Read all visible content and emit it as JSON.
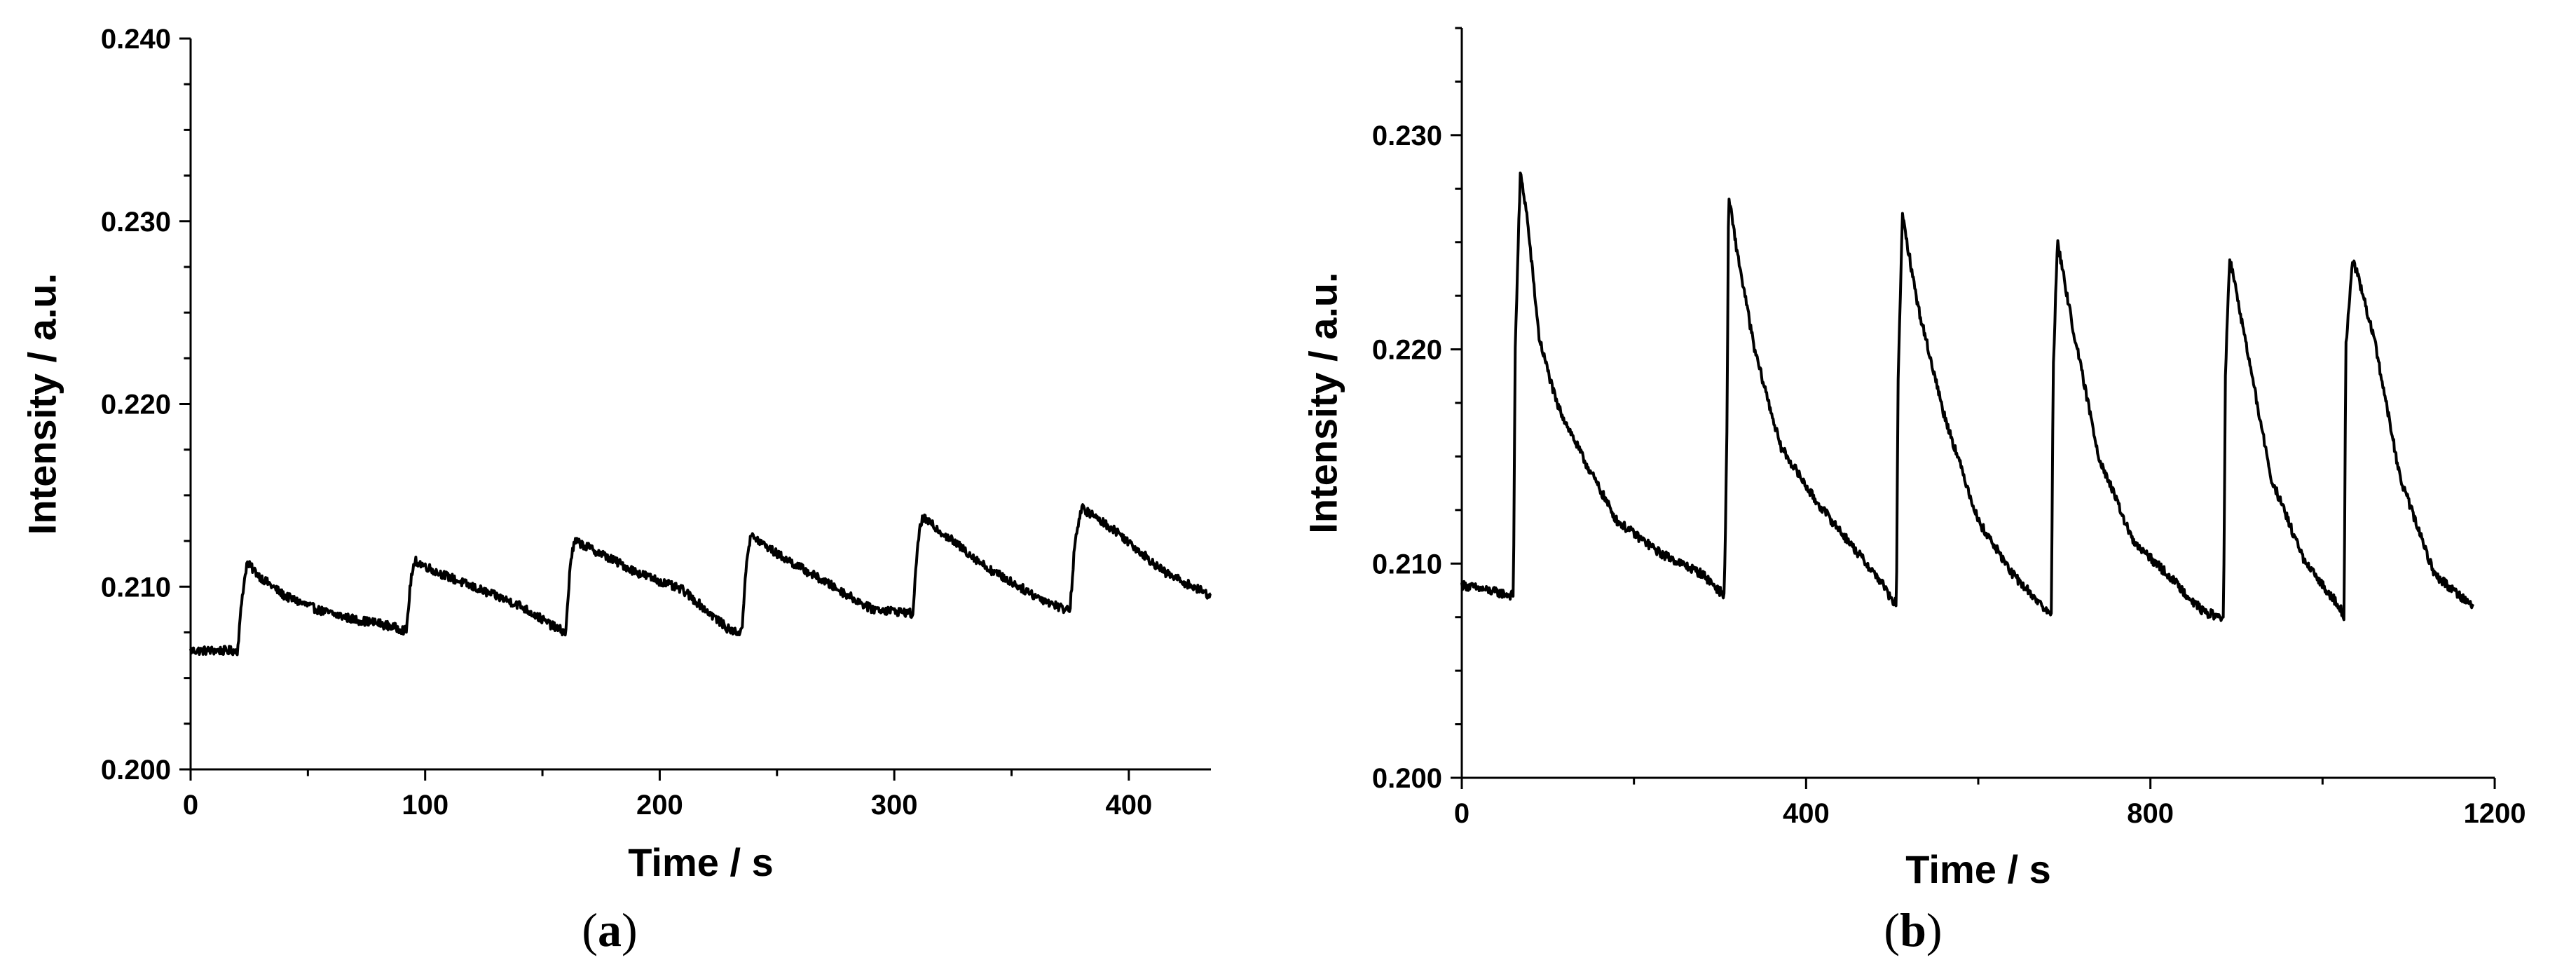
{
  "chart_data": [
    {
      "panel": "a",
      "type": "line",
      "xlabel": "Time / s",
      "ylabel": "Intensity / a.u.",
      "xlim": [
        0,
        435
      ],
      "ylim": [
        0.2,
        0.24
      ],
      "x_ticks": [
        0,
        100,
        200,
        300,
        400
      ],
      "x_tick_labels": [
        "0",
        "100",
        "200",
        "300",
        "400"
      ],
      "y_ticks": [
        0.2,
        0.21,
        0.22,
        0.23,
        0.24
      ],
      "y_tick_labels": [
        "0.200",
        "0.210",
        "0.220",
        "0.230",
        "0.240"
      ],
      "grid": false,
      "series": [
        {
          "x": [
            0,
            20,
            22,
            24,
            30,
            40,
            55,
            70,
            80,
            92,
            94,
            96,
            105,
            120,
            140,
            155,
            160,
            162,
            164,
            175,
            190,
            210,
            230,
            235,
            237,
            239,
            250,
            270,
            290,
            305,
            308,
            310,
            312,
            320,
            340,
            360,
            372,
            375,
            377,
            380,
            395,
            415,
            435
          ],
          "y": [
            0.2065,
            0.2065,
            0.2095,
            0.2113,
            0.2105,
            0.2095,
            0.2087,
            0.2082,
            0.208,
            0.2076,
            0.2105,
            0.2114,
            0.2108,
            0.21,
            0.209,
            0.2078,
            0.2075,
            0.2115,
            0.2125,
            0.2118,
            0.2108,
            0.2098,
            0.2076,
            0.2075,
            0.2115,
            0.2128,
            0.2118,
            0.2103,
            0.2088,
            0.2086,
            0.2085,
            0.2125,
            0.2138,
            0.213,
            0.211,
            0.2095,
            0.2088,
            0.2088,
            0.2125,
            0.2143,
            0.213,
            0.2108,
            0.2095
          ]
        }
      ]
    },
    {
      "panel": "b",
      "type": "line",
      "xlabel": "Time / s",
      "ylabel": "Intensity / a.u.",
      "xlim": [
        0,
        1200
      ],
      "ylim": [
        0.2,
        0.235
      ],
      "x_ticks": [
        0,
        400,
        800,
        1200
      ],
      "x_tick_labels": [
        "0",
        "400",
        "800",
        "1200"
      ],
      "y_ticks": [
        0.2,
        0.21,
        0.22,
        0.23
      ],
      "y_tick_labels": [
        "0.200",
        "0.210",
        "0.220",
        "0.230"
      ],
      "grid": false,
      "series": [
        {
          "x": [
            0,
            60,
            62,
            68,
            75,
            90,
            110,
            140,
            180,
            230,
            280,
            305,
            308,
            310,
            318,
            340,
            370,
            410,
            450,
            490,
            500,
            505,
            507,
            512,
            530,
            560,
            600,
            640,
            675,
            680,
            685,
            687,
            692,
            710,
            740,
            780,
            820,
            860,
            880,
            885,
            887,
            892,
            910,
            940,
            980,
            1010,
            1020,
            1025,
            1027,
            1035,
            1060,
            1090,
            1130,
            1175
          ],
          "y": [
            0.209,
            0.2085,
            0.22,
            0.2282,
            0.2265,
            0.2205,
            0.2175,
            0.215,
            0.212,
            0.2105,
            0.2095,
            0.2085,
            0.216,
            0.2272,
            0.225,
            0.22,
            0.2155,
            0.213,
            0.211,
            0.209,
            0.2082,
            0.2082,
            0.219,
            0.2262,
            0.222,
            0.217,
            0.212,
            0.2095,
            0.208,
            0.2077,
            0.2077,
            0.219,
            0.225,
            0.221,
            0.215,
            0.211,
            0.2095,
            0.2078,
            0.2075,
            0.2075,
            0.2185,
            0.2243,
            0.2205,
            0.214,
            0.21,
            0.2085,
            0.208,
            0.2075,
            0.22,
            0.2243,
            0.2205,
            0.214,
            0.2095,
            0.208
          ]
        }
      ]
    }
  ],
  "panel_labels": [
    {
      "open": "(",
      "letter": "a",
      "close": ")"
    },
    {
      "open": "(",
      "letter": "b",
      "close": ")"
    }
  ]
}
